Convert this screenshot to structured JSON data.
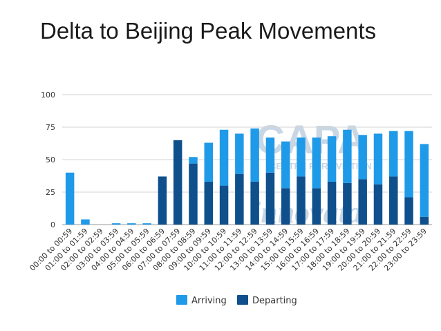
{
  "slide": {
    "title": "Delta to Beijing Peak Movements"
  },
  "watermark": {
    "line1": "CAPA",
    "line2": "CENTRE FOR AVIATION",
    "line3": "innovata"
  },
  "colors": {
    "arriving": "#1f9ae8",
    "departing": "#0e4f8c",
    "grid": "#d3d3d3",
    "axis": "#999999"
  },
  "chart_data": {
    "type": "bar",
    "stacked": true,
    "categories": [
      "00:00 to 00:59",
      "01:00 to 01:59",
      "02:00 to 02:59",
      "03:00 to 03:59",
      "04:00 to 04:59",
      "05:00 to 05:59",
      "06:00 to 06:59",
      "07:00 to 07:59",
      "08:00 to 08:59",
      "09:00 to 09:59",
      "10:00 to 10:59",
      "11:00 to 11:59",
      "12:00 to 12:59",
      "13:00 to 13:59",
      "14:00 to 14:59",
      "15:00 to 15:59",
      "16:00 to 16:59",
      "17:00 to 17:59",
      "18:00 to 18:59",
      "19:00 to 19:59",
      "20:00 to 20:59",
      "21:00 to 21:59",
      "22:00 to 22:59",
      "23:00 to 23:59"
    ],
    "series": [
      {
        "name": "Departing",
        "values": [
          0,
          0,
          0,
          0,
          0,
          0,
          37,
          65,
          47,
          33,
          30,
          39,
          33,
          40,
          28,
          37,
          28,
          33,
          32,
          35,
          31,
          37,
          21,
          6
        ]
      },
      {
        "name": "Arriving",
        "values": [
          40,
          4,
          0,
          1,
          1,
          1,
          0,
          0,
          5,
          30,
          43,
          31,
          41,
          27,
          36,
          30,
          39,
          35,
          41,
          34,
          39,
          35,
          51,
          56
        ]
      }
    ],
    "ylim": [
      0,
      100
    ],
    "yticks": [
      "0",
      "25",
      "50",
      "75",
      "100"
    ],
    "grid": true,
    "legend": "bottom",
    "legend_items": [
      "Arriving",
      "Departing"
    ],
    "title": "",
    "xlabel": "",
    "ylabel": ""
  }
}
